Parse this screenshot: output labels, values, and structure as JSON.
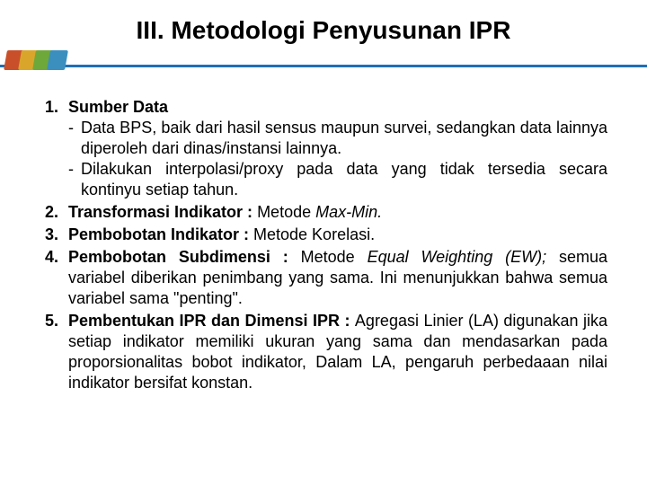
{
  "title": "III. Metodologi Penyusunan IPR",
  "accent": {
    "line_color": "#1f6fb5",
    "block1": "#c94f2a",
    "block2": "#d9a62b",
    "block3": "#6fa83a",
    "block4": "#3a8fbf"
  },
  "items": [
    {
      "head": "Sumber Data",
      "subs": [
        "Data BPS, baik dari hasil sensus maupun survei, sedangkan data lainnya diperoleh dari dinas/instansi lainnya.",
        "Dilakukan interpolasi/proxy pada data yang tidak tersedia secara kontinyu setiap tahun."
      ]
    },
    {
      "head": "Transformasi Indikator : ",
      "tail_plain": "Metode ",
      "tail_italic": "Max-Min."
    },
    {
      "head": "Pembobotan Indikator : ",
      "tail_plain": "Metode Korelasi."
    },
    {
      "head": "Pembobotan Subdimensi : ",
      "tail_plain": "Metode ",
      "tail_italic": "Equal Weighting (EW); ",
      "rest": "semua variabel diberikan penimbang yang sama. Ini menunjukkan bahwa semua variabel sama \"penting\"."
    },
    {
      "head": "Pembentukan IPR dan Dimensi IPR : ",
      "rest": "Agregasi Linier (LA) digunakan jika setiap indikator memiliki ukuran yang sama dan mendasarkan pada proporsionalitas bobot indikator, Dalam LA, pengaruh perbedaaan nilai indikator bersifat konstan."
    }
  ]
}
